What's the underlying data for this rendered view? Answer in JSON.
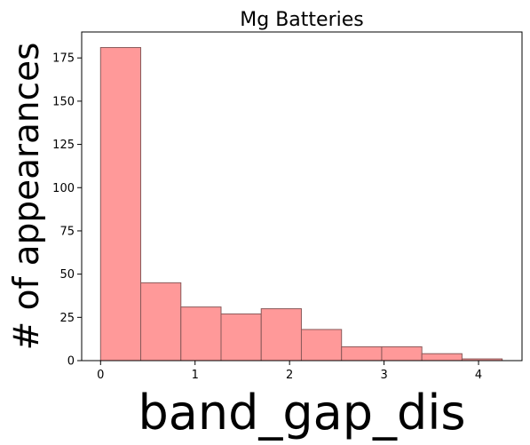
{
  "chart_data": {
    "type": "bar",
    "title": "Mg Batteries",
    "xlabel": "band_gap_dis",
    "ylabel": "# of appearances",
    "bin_edges": [
      0.0,
      0.425,
      0.85,
      1.275,
      1.7,
      2.125,
      2.55,
      2.975,
      3.4,
      3.825,
      4.25
    ],
    "values": [
      181,
      45,
      31,
      27,
      30,
      18,
      8,
      8,
      4,
      1
    ],
    "xlim": [
      -0.2,
      4.46
    ],
    "ylim": [
      0,
      190
    ],
    "xticks": [
      0,
      1,
      2,
      3,
      4
    ],
    "yticks": [
      0,
      25,
      50,
      75,
      100,
      125,
      150,
      175
    ],
    "bar_color": "#ff9999",
    "bar_edge_color": "#8a5a5a",
    "grid": false,
    "legend": "none"
  }
}
